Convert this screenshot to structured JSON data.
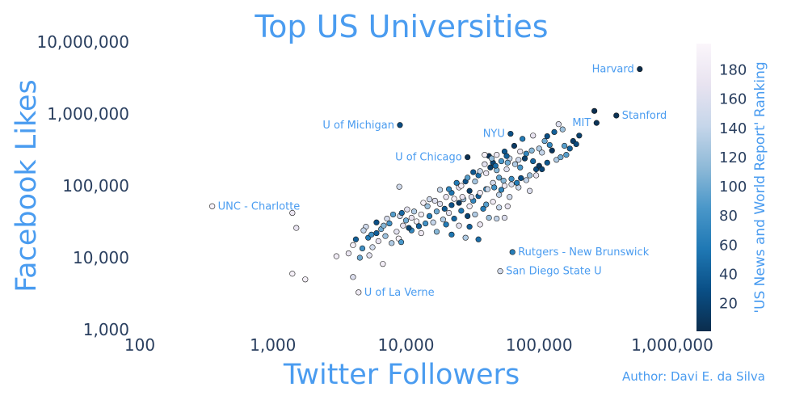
{
  "chart_data": {
    "type": "scatter",
    "title": "Top US Universities",
    "xlabel": "Twitter Followers",
    "ylabel": "Facebook Likes",
    "x_scale": "log",
    "y_scale": "log",
    "xlim": [
      100,
      1000000
    ],
    "ylim": [
      1000,
      10000000
    ],
    "x_ticks": [
      100,
      1000,
      10000,
      100000,
      1000000
    ],
    "x_tick_labels": [
      "100",
      "1,000",
      "10,000",
      "100,000",
      "1,000,000"
    ],
    "y_ticks": [
      1000,
      10000,
      100000,
      1000000,
      10000000
    ],
    "y_tick_labels": [
      "1,000",
      "10,000",
      "100,000",
      "1,000,000",
      "10,000,000"
    ],
    "grid": false,
    "colorbar": {
      "title": "'US News and World Report' Ranking",
      "range": [
        1,
        198
      ],
      "ticks": [
        20,
        40,
        60,
        80,
        100,
        120,
        140,
        160,
        180
      ],
      "tick_labels": [
        "20",
        "40",
        "60",
        "80",
        "100",
        "120",
        "140",
        "160",
        "180"
      ],
      "colors": [
        "#0b2d4d",
        "#0a4f86",
        "#1f78b4",
        "#4a97c9",
        "#8fbad8",
        "#c6d6ea",
        "#e8e3f0",
        "#fbf6fb"
      ]
    },
    "annotations": [
      {
        "text": "Harvard",
        "x": 570000,
        "y": 4200000,
        "side": "left"
      },
      {
        "text": "Stanford",
        "x": 380000,
        "y": 950000,
        "side": "right"
      },
      {
        "text": "MIT",
        "x": 270000,
        "y": 750000,
        "side": "left"
      },
      {
        "text": "U of Michigan",
        "x": 9000,
        "y": 700000,
        "side": "left"
      },
      {
        "text": "NYU",
        "x": 61000,
        "y": 530000,
        "side": "left"
      },
      {
        "text": "U of Chicago",
        "x": 29000,
        "y": 250000,
        "side": "left"
      },
      {
        "text": "UNC - Charlotte",
        "x": 350,
        "y": 52000,
        "side": "right"
      },
      {
        "text": "Rutgers - New Brunswick",
        "x": 63000,
        "y": 12000,
        "side": "right"
      },
      {
        "text": "San Diego State U",
        "x": 51000,
        "y": 6500,
        "side": "right"
      },
      {
        "text": "U of La Verne",
        "x": 4400,
        "y": 3300,
        "side": "right"
      }
    ],
    "points": [
      {
        "x": 570000,
        "y": 4200000,
        "rank": 2
      },
      {
        "x": 380000,
        "y": 950000,
        "rank": 5
      },
      {
        "x": 270000,
        "y": 750000,
        "rank": 7
      },
      {
        "x": 260000,
        "y": 1100000,
        "rank": 3
      },
      {
        "x": 9000,
        "y": 700000,
        "rank": 27
      },
      {
        "x": 61000,
        "y": 530000,
        "rank": 30
      },
      {
        "x": 29000,
        "y": 250000,
        "rank": 4
      },
      {
        "x": 350,
        "y": 52000,
        "rank": 190
      },
      {
        "x": 63000,
        "y": 12000,
        "rank": 62
      },
      {
        "x": 51000,
        "y": 6500,
        "rank": 152
      },
      {
        "x": 4400,
        "y": 3300,
        "rank": 180
      },
      {
        "x": 1400,
        "y": 42000,
        "rank": 175
      },
      {
        "x": 1500,
        "y": 26000,
        "rank": 170
      },
      {
        "x": 1400,
        "y": 6000,
        "rank": 188
      },
      {
        "x": 1750,
        "y": 5000,
        "rank": 185
      },
      {
        "x": 4000,
        "y": 5400,
        "rank": 160
      },
      {
        "x": 3000,
        "y": 10500,
        "rank": 182
      },
      {
        "x": 8900,
        "y": 97000,
        "rank": 150
      },
      {
        "x": 140000,
        "y": 720000,
        "rank": 160
      },
      {
        "x": 150000,
        "y": 610000,
        "rank": 120
      },
      {
        "x": 180000,
        "y": 420000,
        "rank": 15
      },
      {
        "x": 130000,
        "y": 560000,
        "rank": 40
      },
      {
        "x": 200000,
        "y": 500000,
        "rank": 18
      },
      {
        "x": 90000,
        "y": 500000,
        "rank": 170
      },
      {
        "x": 110000,
        "y": 420000,
        "rank": 100
      },
      {
        "x": 75000,
        "y": 450000,
        "rank": 60
      },
      {
        "x": 100000,
        "y": 330000,
        "rank": 130
      },
      {
        "x": 125000,
        "y": 310000,
        "rank": 8
      },
      {
        "x": 160000,
        "y": 270000,
        "rank": 90
      },
      {
        "x": 42000,
        "y": 260000,
        "rank": 6
      },
      {
        "x": 55000,
        "y": 300000,
        "rank": 35
      },
      {
        "x": 65000,
        "y": 360000,
        "rank": 12
      },
      {
        "x": 80000,
        "y": 280000,
        "rank": 70
      },
      {
        "x": 70000,
        "y": 230000,
        "rank": 150
      },
      {
        "x": 60000,
        "y": 240000,
        "rank": 140
      },
      {
        "x": 45000,
        "y": 210000,
        "rank": 20
      },
      {
        "x": 90000,
        "y": 220000,
        "rank": 45
      },
      {
        "x": 95000,
        "y": 170000,
        "rank": 25
      },
      {
        "x": 72000,
        "y": 180000,
        "rank": 85
      },
      {
        "x": 57000,
        "y": 170000,
        "rank": 160
      },
      {
        "x": 48000,
        "y": 165000,
        "rank": 110
      },
      {
        "x": 40000,
        "y": 150000,
        "rank": 175
      },
      {
        "x": 35000,
        "y": 140000,
        "rank": 50
      },
      {
        "x": 50000,
        "y": 130000,
        "rank": 95
      },
      {
        "x": 62000,
        "y": 125000,
        "rank": 75
      },
      {
        "x": 80000,
        "y": 120000,
        "rank": 140
      },
      {
        "x": 95000,
        "y": 140000,
        "rank": 170
      },
      {
        "x": 100000,
        "y": 190000,
        "rank": 10
      },
      {
        "x": 33000,
        "y": 115000,
        "rank": 125
      },
      {
        "x": 28000,
        "y": 115000,
        "rank": 30
      },
      {
        "x": 45000,
        "y": 110000,
        "rank": 155
      },
      {
        "x": 55000,
        "y": 100000,
        "rank": 180
      },
      {
        "x": 70000,
        "y": 95000,
        "rank": 145
      },
      {
        "x": 85000,
        "y": 85000,
        "rank": 160
      },
      {
        "x": 40000,
        "y": 90000,
        "rank": 65
      },
      {
        "x": 30000,
        "y": 85000,
        "rank": 15
      },
      {
        "x": 25000,
        "y": 95000,
        "rank": 170
      },
      {
        "x": 22000,
        "y": 80000,
        "rank": 55
      },
      {
        "x": 50000,
        "y": 75000,
        "rank": 135
      },
      {
        "x": 60000,
        "y": 70000,
        "rank": 150
      },
      {
        "x": 35000,
        "y": 72000,
        "rank": 40
      },
      {
        "x": 20000,
        "y": 70000,
        "rank": 175
      },
      {
        "x": 15000,
        "y": 65000,
        "rank": 150
      },
      {
        "x": 27000,
        "y": 65000,
        "rank": 120
      },
      {
        "x": 32000,
        "y": 62000,
        "rank": 70
      },
      {
        "x": 45000,
        "y": 60000,
        "rank": 180
      },
      {
        "x": 40000,
        "y": 55000,
        "rank": 90
      },
      {
        "x": 25000,
        "y": 58000,
        "rank": 10
      },
      {
        "x": 18000,
        "y": 56000,
        "rank": 160
      },
      {
        "x": 22000,
        "y": 54000,
        "rank": 30
      },
      {
        "x": 30000,
        "y": 52000,
        "rank": 185
      },
      {
        "x": 38000,
        "y": 48000,
        "rank": 60
      },
      {
        "x": 50000,
        "y": 50000,
        "rank": 140
      },
      {
        "x": 58000,
        "y": 52000,
        "rank": 170
      },
      {
        "x": 26000,
        "y": 45000,
        "rank": 55
      },
      {
        "x": 21000,
        "y": 42000,
        "rank": 165
      },
      {
        "x": 17000,
        "y": 44000,
        "rank": 100
      },
      {
        "x": 13000,
        "y": 40000,
        "rank": 185
      },
      {
        "x": 15000,
        "y": 38000,
        "rank": 60
      },
      {
        "x": 33000,
        "y": 40000,
        "rank": 130
      },
      {
        "x": 29000,
        "y": 38000,
        "rank": 20
      },
      {
        "x": 42000,
        "y": 36000,
        "rank": 120
      },
      {
        "x": 48000,
        "y": 35000,
        "rank": 140
      },
      {
        "x": 55000,
        "y": 36000,
        "rank": 160
      },
      {
        "x": 23000,
        "y": 35000,
        "rank": 45
      },
      {
        "x": 19000,
        "y": 34000,
        "rank": 130
      },
      {
        "x": 11000,
        "y": 36000,
        "rank": 170
      },
      {
        "x": 9000,
        "y": 38000,
        "rank": 150
      },
      {
        "x": 8000,
        "y": 40000,
        "rank": 90
      },
      {
        "x": 10000,
        "y": 33000,
        "rank": 100
      },
      {
        "x": 12000,
        "y": 32000,
        "rank": 190
      },
      {
        "x": 14000,
        "y": 30000,
        "rank": 80
      },
      {
        "x": 16000,
        "y": 31000,
        "rank": 140
      },
      {
        "x": 20000,
        "y": 29000,
        "rank": 60
      },
      {
        "x": 25000,
        "y": 28000,
        "rank": 165
      },
      {
        "x": 30000,
        "y": 27000,
        "rank": 40
      },
      {
        "x": 36000,
        "y": 29000,
        "rank": 175
      },
      {
        "x": 9500,
        "y": 28000,
        "rank": 170
      },
      {
        "x": 7500,
        "y": 30000,
        "rank": 80
      },
      {
        "x": 6500,
        "y": 25000,
        "rank": 100
      },
      {
        "x": 5000,
        "y": 27000,
        "rank": 150
      },
      {
        "x": 4800,
        "y": 24000,
        "rank": 140
      },
      {
        "x": 6000,
        "y": 22000,
        "rank": 40
      },
      {
        "x": 8500,
        "y": 23000,
        "rank": 165
      },
      {
        "x": 11000,
        "y": 24000,
        "rank": 70
      },
      {
        "x": 13000,
        "y": 22000,
        "rank": 180
      },
      {
        "x": 17000,
        "y": 23000,
        "rank": 110
      },
      {
        "x": 22000,
        "y": 21000,
        "rank": 55
      },
      {
        "x": 28000,
        "y": 19000,
        "rank": 130
      },
      {
        "x": 35000,
        "y": 18000,
        "rank": 50
      },
      {
        "x": 7000,
        "y": 20000,
        "rank": 120
      },
      {
        "x": 8800,
        "y": 18500,
        "rank": 190
      },
      {
        "x": 9200,
        "y": 16500,
        "rank": 85
      },
      {
        "x": 7800,
        "y": 16000,
        "rank": 130
      },
      {
        "x": 6200,
        "y": 17000,
        "rank": 170
      },
      {
        "x": 5200,
        "y": 19000,
        "rank": 60
      },
      {
        "x": 4200,
        "y": 18000,
        "rank": 40
      },
      {
        "x": 4000,
        "y": 15000,
        "rank": 190
      },
      {
        "x": 4700,
        "y": 13500,
        "rank": 80
      },
      {
        "x": 5600,
        "y": 14000,
        "rank": 150
      },
      {
        "x": 3700,
        "y": 11500,
        "rank": 175
      },
      {
        "x": 4500,
        "y": 10000,
        "rank": 100
      },
      {
        "x": 5300,
        "y": 10800,
        "rank": 165
      },
      {
        "x": 6700,
        "y": 8200,
        "rank": 185
      },
      {
        "x": 10500,
        "y": 26000,
        "rank": 20
      },
      {
        "x": 12500,
        "y": 27500,
        "rank": 40
      },
      {
        "x": 19500,
        "y": 48000,
        "rank": 35
      },
      {
        "x": 23000,
        "y": 66000,
        "rank": 190
      },
      {
        "x": 26500,
        "y": 70000,
        "rank": 175
      },
      {
        "x": 31000,
        "y": 70000,
        "rank": 160
      },
      {
        "x": 36000,
        "y": 80000,
        "rank": 185
      },
      {
        "x": 41000,
        "y": 90000,
        "rank": 145
      },
      {
        "x": 46000,
        "y": 95000,
        "rank": 80
      },
      {
        "x": 52000,
        "y": 88000,
        "rank": 70
      },
      {
        "x": 54000,
        "y": 118000,
        "rank": 110
      },
      {
        "x": 62000,
        "y": 105000,
        "rank": 155
      },
      {
        "x": 68000,
        "y": 110000,
        "rank": 60
      },
      {
        "x": 73000,
        "y": 128000,
        "rank": 30
      },
      {
        "x": 85000,
        "y": 140000,
        "rank": 120
      },
      {
        "x": 105000,
        "y": 170000,
        "rank": 20
      },
      {
        "x": 115000,
        "y": 210000,
        "rank": 35
      },
      {
        "x": 135000,
        "y": 230000,
        "rank": 130
      },
      {
        "x": 145000,
        "y": 250000,
        "rank": 100
      },
      {
        "x": 155000,
        "y": 360000,
        "rank": 90
      },
      {
        "x": 170000,
        "y": 330000,
        "rank": 40
      },
      {
        "x": 190000,
        "y": 380000,
        "rank": 25
      },
      {
        "x": 120000,
        "y": 370000,
        "rank": 70
      },
      {
        "x": 105000,
        "y": 290000,
        "rank": 140
      },
      {
        "x": 88000,
        "y": 310000,
        "rank": 110
      },
      {
        "x": 78000,
        "y": 240000,
        "rank": 16
      },
      {
        "x": 66000,
        "y": 200000,
        "rank": 130
      },
      {
        "x": 58000,
        "y": 210000,
        "rank": 100
      },
      {
        "x": 52000,
        "y": 220000,
        "rank": 85
      },
      {
        "x": 47000,
        "y": 190000,
        "rank": 50
      },
      {
        "x": 43000,
        "y": 180000,
        "rank": 14
      },
      {
        "x": 39000,
        "y": 200000,
        "rank": 165
      },
      {
        "x": 36000,
        "y": 160000,
        "rank": 145
      },
      {
        "x": 32000,
        "y": 155000,
        "rank": 35
      },
      {
        "x": 29000,
        "y": 130000,
        "rank": 90
      },
      {
        "x": 26000,
        "y": 100000,
        "rank": 185
      },
      {
        "x": 24000,
        "y": 110000,
        "rank": 60
      },
      {
        "x": 21000,
        "y": 90000,
        "rank": 70
      },
      {
        "x": 18000,
        "y": 88000,
        "rank": 140
      },
      {
        "x": 16500,
        "y": 62000,
        "rank": 160
      },
      {
        "x": 14500,
        "y": 52000,
        "rank": 120
      },
      {
        "x": 13500,
        "y": 58000,
        "rank": 190
      },
      {
        "x": 11500,
        "y": 44000,
        "rank": 130
      },
      {
        "x": 10200,
        "y": 47000,
        "rank": 165
      },
      {
        "x": 9300,
        "y": 42000,
        "rank": 45
      },
      {
        "x": 7200,
        "y": 35000,
        "rank": 155
      },
      {
        "x": 6800,
        "y": 28000,
        "rank": 110
      },
      {
        "x": 6000,
        "y": 31000,
        "rank": 30
      },
      {
        "x": 5500,
        "y": 21000,
        "rank": 75
      },
      {
        "x": 39000,
        "y": 270000,
        "rank": 190
      },
      {
        "x": 44000,
        "y": 240000,
        "rank": 115
      },
      {
        "x": 48000,
        "y": 270000,
        "rank": 180
      },
      {
        "x": 57000,
        "y": 260000,
        "rank": 40
      },
      {
        "x": 72000,
        "y": 300000,
        "rank": 175
      },
      {
        "x": 115000,
        "y": 490000,
        "rank": 28
      }
    ]
  },
  "footer": {
    "author": "Author: Davi E. da Silva"
  }
}
